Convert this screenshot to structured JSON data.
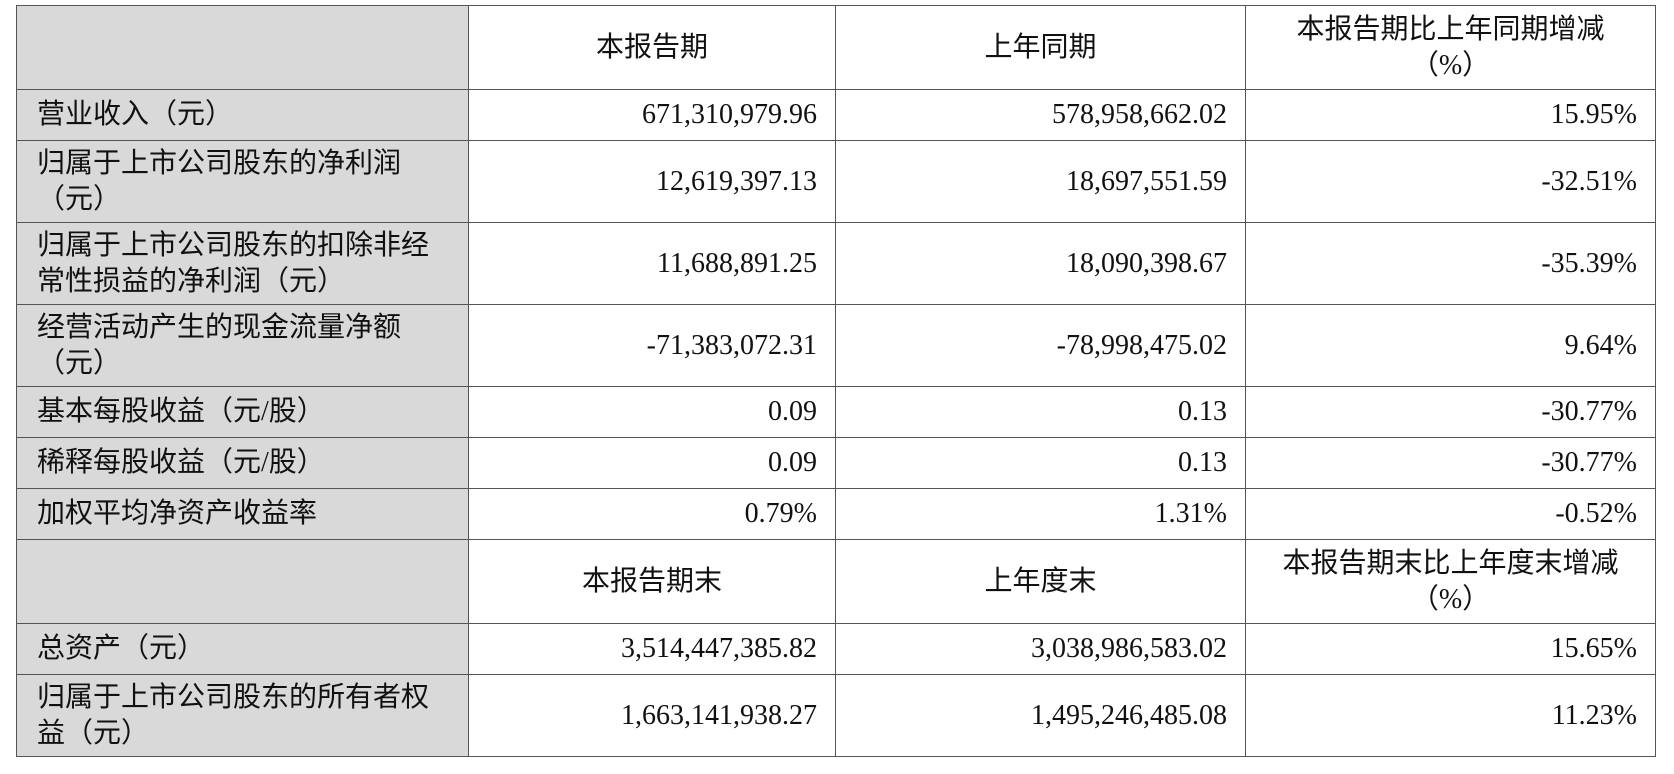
{
  "table1": {
    "headers": [
      "本报告期",
      "上年同期",
      "本报告期比上年同期增减（%）"
    ],
    "rows": [
      [
        "营业收入（元）",
        "671,310,979.96",
        "578,958,662.02",
        "15.95%"
      ],
      [
        "归属于上市公司股东的净利润（元）",
        "12,619,397.13",
        "18,697,551.59",
        "-32.51%"
      ],
      [
        "归属于上市公司股东的扣除非经常性损益的净利润（元）",
        "11,688,891.25",
        "18,090,398.67",
        "-35.39%"
      ],
      [
        "经营活动产生的现金流量净额（元）",
        "-71,383,072.31",
        "-78,998,475.02",
        "9.64%"
      ],
      [
        "基本每股收益（元/股）",
        "0.09",
        "0.13",
        "-30.77%"
      ],
      [
        "稀释每股收益（元/股）",
        "0.09",
        "0.13",
        "-30.77%"
      ],
      [
        "加权平均净资产收益率",
        "0.79%",
        "1.31%",
        "-0.52%"
      ]
    ]
  },
  "table2": {
    "headers": [
      "本报告期末",
      "上年度末",
      "本报告期末比上年度末增减（%）"
    ],
    "rows": [
      [
        "总资产（元）",
        "3,514,447,385.82",
        "3,038,986,583.02",
        "15.65%"
      ],
      [
        "归属于上市公司股东的所有者权益（元）",
        "1,663,141,938.27",
        "1,495,246,485.08",
        "11.23%"
      ]
    ]
  }
}
